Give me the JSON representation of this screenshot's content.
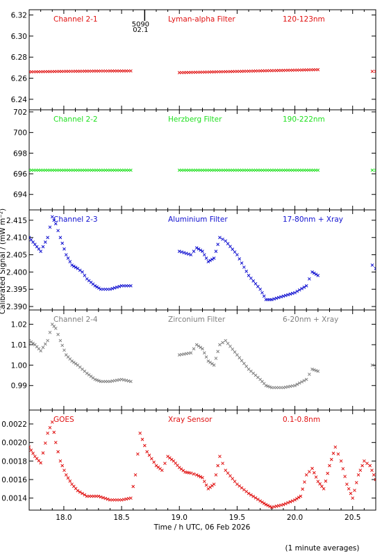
{
  "figure": {
    "xlabel": "Time / h UTC, 06 Feb 2026",
    "ylabel": "Calibrated Signal / (mW m⁻²)",
    "footnote": "(1 minute averages)",
    "x_range": [
      17.7,
      20.7
    ],
    "x_ticks": [
      "18.0",
      "18.5",
      "19.0",
      "19.5",
      "20.0",
      "20.5"
    ],
    "x_tick_values": [
      18.0,
      18.5,
      19.0,
      19.5,
      20.0,
      20.5
    ],
    "marker": {
      "x": 18.7,
      "label_line1": "5090",
      "label_line2": "02.1"
    }
  },
  "chart_data": [
    {
      "type": "scatter",
      "channel": "Channel 2-1",
      "filter": "Lyman-alpha Filter",
      "band": "120-123nm",
      "color": "#e01010",
      "ylim": [
        6.23,
        6.325
      ],
      "y_ticks": [
        "6.32",
        "6.30",
        "6.28",
        "6.26",
        "6.24"
      ],
      "y_tick_values": [
        6.32,
        6.3,
        6.28,
        6.26,
        6.24
      ],
      "segments": [
        {
          "x": [
            17.7,
            18.0,
            18.3,
            18.58
          ],
          "y": [
            6.266,
            6.2665,
            6.2668,
            6.2669
          ]
        },
        {
          "x": [
            19.0,
            19.4,
            19.8,
            20.2
          ],
          "y": [
            6.2653,
            6.2662,
            6.2672,
            6.2681
          ]
        },
        {
          "x": [
            20.67,
            20.7
          ],
          "y": [
            6.2665,
            6.2665
          ]
        }
      ]
    },
    {
      "type": "scatter",
      "channel": "Channel 2-2",
      "filter": "Herzberg Filter",
      "band": "190-222nm",
      "color": "#20e020",
      "ylim": [
        692.5,
        702.2
      ],
      "y_ticks": [
        "702",
        "700",
        "698",
        "696",
        "694"
      ],
      "y_tick_values": [
        702,
        700,
        698,
        696,
        694
      ],
      "segments": [
        {
          "x": [
            17.7,
            18.58
          ],
          "y": [
            696.35,
            696.35
          ]
        },
        {
          "x": [
            19.0,
            20.2
          ],
          "y": [
            696.35,
            696.35
          ]
        },
        {
          "x": [
            20.67,
            20.7
          ],
          "y": [
            696.35,
            696.35
          ]
        }
      ]
    },
    {
      "type": "scatter",
      "channel": "Channel 2-3",
      "filter": "Aluminium Filter",
      "band": "17-80nm + Xray",
      "color": "#1010d0",
      "ylim": [
        2.389,
        2.418
      ],
      "y_ticks": [
        "2.415",
        "2.410",
        "2.405",
        "2.400",
        "2.395",
        "2.390"
      ],
      "y_tick_values": [
        2.415,
        2.41,
        2.405,
        2.4,
        2.395,
        2.39
      ],
      "segments": [
        {
          "x": [
            17.7,
            17.75,
            17.8,
            17.86,
            17.9,
            17.93,
            17.97,
            18.02,
            18.07,
            18.12,
            18.16,
            18.2,
            18.27,
            18.32,
            18.4,
            18.5,
            18.58
          ],
          "y": [
            2.41,
            2.408,
            2.406,
            2.41,
            2.416,
            2.414,
            2.41,
            2.405,
            2.402,
            2.401,
            2.4,
            2.398,
            2.396,
            2.395,
            2.395,
            2.396,
            2.396
          ]
        },
        {
          "x": [
            19.0,
            19.1,
            19.15,
            19.2,
            19.25,
            19.3,
            19.35,
            19.4,
            19.5,
            19.6,
            19.7,
            19.75,
            19.8,
            19.9,
            20.0,
            20.1,
            20.15,
            20.2
          ],
          "y": [
            2.406,
            2.405,
            2.407,
            2.406,
            2.403,
            2.404,
            2.41,
            2.409,
            2.405,
            2.399,
            2.395,
            2.392,
            2.392,
            2.393,
            2.394,
            2.396,
            2.4,
            2.399
          ]
        },
        {
          "x": [
            20.67,
            20.7
          ],
          "y": [
            2.402,
            2.401
          ]
        }
      ]
    },
    {
      "type": "scatter",
      "channel": "Channel 2-4",
      "filter": "Zirconium Filter",
      "band": "6-20nm + Xray",
      "color": "#808080",
      "ylim": [
        0.978,
        1.027
      ],
      "y_ticks": [
        "1.02",
        "1.01",
        "1.00",
        "0.99"
      ],
      "y_tick_values": [
        1.02,
        1.01,
        1.0,
        0.99
      ],
      "segments": [
        {
          "x": [
            17.7,
            17.75,
            17.8,
            17.86,
            17.9,
            17.93,
            17.97,
            18.02,
            18.07,
            18.12,
            18.16,
            18.2,
            18.27,
            18.32,
            18.4,
            18.5,
            18.58
          ],
          "y": [
            1.012,
            1.01,
            1.007,
            1.012,
            1.02,
            1.018,
            1.012,
            1.005,
            1.002,
            1.0,
            0.998,
            0.996,
            0.993,
            0.992,
            0.992,
            0.993,
            0.992
          ]
        },
        {
          "x": [
            19.0,
            19.1,
            19.15,
            19.2,
            19.25,
            19.3,
            19.35,
            19.4,
            19.5,
            19.6,
            19.7,
            19.75,
            19.8,
            19.9,
            20.0,
            20.1,
            20.15,
            20.2
          ],
          "y": [
            1.005,
            1.006,
            1.01,
            1.008,
            1.002,
            1.0,
            1.01,
            1.012,
            1.005,
            0.998,
            0.993,
            0.99,
            0.989,
            0.989,
            0.99,
            0.993,
            0.998,
            0.997
          ]
        },
        {
          "x": [
            20.67,
            20.7
          ],
          "y": [
            1.0,
            0.999
          ]
        }
      ]
    },
    {
      "type": "scatter",
      "channel": "GOES",
      "filter": "Xray Sensor",
      "band": "0.1-0.8nm",
      "color": "#e01010",
      "ylim": [
        0.00127,
        0.00235
      ],
      "y_ticks": [
        "0.0022",
        "0.0020",
        "0.0018",
        "0.0016",
        "0.0014"
      ],
      "y_tick_values": [
        0.0022,
        0.002,
        0.0018,
        0.0016,
        0.0014
      ],
      "segments": [
        {
          "x": [
            17.7,
            17.75,
            17.8,
            17.86,
            17.9,
            17.93,
            17.97,
            18.02,
            18.07,
            18.12,
            18.2,
            18.3,
            18.4,
            18.5,
            18.58,
            18.62,
            18.66,
            18.72,
            18.8,
            18.85,
            18.9,
            18.95,
            19.0,
            19.05,
            19.1,
            19.15,
            19.2,
            19.25,
            19.3,
            19.35,
            19.4,
            19.5,
            19.6,
            19.7,
            19.75,
            19.8,
            19.9,
            20.0,
            20.05,
            20.1,
            20.15,
            20.2,
            20.25,
            20.3,
            20.35,
            20.4,
            20.45,
            20.5,
            20.55,
            20.6,
            20.65,
            20.7
          ],
          "y": [
            0.00195,
            0.00185,
            0.00178,
            0.0021,
            0.00222,
            0.002,
            0.0018,
            0.00165,
            0.00155,
            0.00148,
            0.00142,
            0.00142,
            0.00138,
            0.00138,
            0.0014,
            0.00165,
            0.0021,
            0.0019,
            0.00175,
            0.0017,
            0.00185,
            0.0018,
            0.00173,
            0.00168,
            0.00167,
            0.00165,
            0.00162,
            0.0015,
            0.00155,
            0.00185,
            0.0017,
            0.00155,
            0.00145,
            0.00137,
            0.00133,
            0.0013,
            0.00133,
            0.00138,
            0.00142,
            0.00165,
            0.00172,
            0.00158,
            0.0015,
            0.00175,
            0.00195,
            0.0018,
            0.00155,
            0.0014,
            0.00165,
            0.0018,
            0.00175,
            0.0016
          ]
        }
      ]
    }
  ]
}
